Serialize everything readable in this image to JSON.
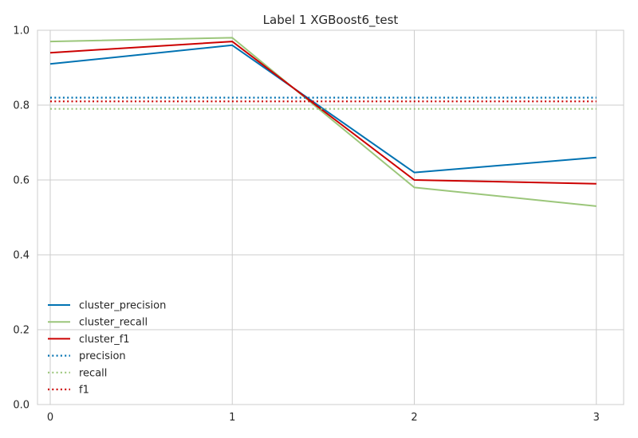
{
  "chart_data": {
    "type": "line",
    "title": "Label 1 XGBoost6_test",
    "xlabel": "",
    "ylabel": "",
    "x": [
      0,
      1,
      2,
      3
    ],
    "xlim": [
      -0.07,
      3.15
    ],
    "ylim": [
      0,
      1.0
    ],
    "xticks": [
      "0",
      "1",
      "2",
      "3"
    ],
    "yticks": [
      "0.0",
      "0.2",
      "0.4",
      "0.6",
      "0.8",
      "1.0"
    ],
    "grid": true,
    "legend_position": "lower-left",
    "series": [
      {
        "name": "cluster_precision",
        "style": "solid",
        "color": "#0072B2",
        "values": [
          0.91,
          0.96,
          0.62,
          0.66
        ]
      },
      {
        "name": "cluster_recall",
        "style": "solid",
        "color": "#9BC67A",
        "values": [
          0.97,
          0.98,
          0.58,
          0.53
        ]
      },
      {
        "name": "cluster_f1",
        "style": "solid",
        "color": "#CC0000",
        "values": [
          0.94,
          0.97,
          0.6,
          0.59
        ]
      },
      {
        "name": "precision",
        "style": "dotted",
        "color": "#0072B2",
        "values": [
          0.82,
          0.82,
          0.82,
          0.82
        ]
      },
      {
        "name": "recall",
        "style": "dotted",
        "color": "#9BC67A",
        "values": [
          0.79,
          0.79,
          0.79,
          0.79
        ]
      },
      {
        "name": "f1",
        "style": "dotted",
        "color": "#CC0000",
        "values": [
          0.81,
          0.81,
          0.81,
          0.81
        ]
      }
    ]
  }
}
